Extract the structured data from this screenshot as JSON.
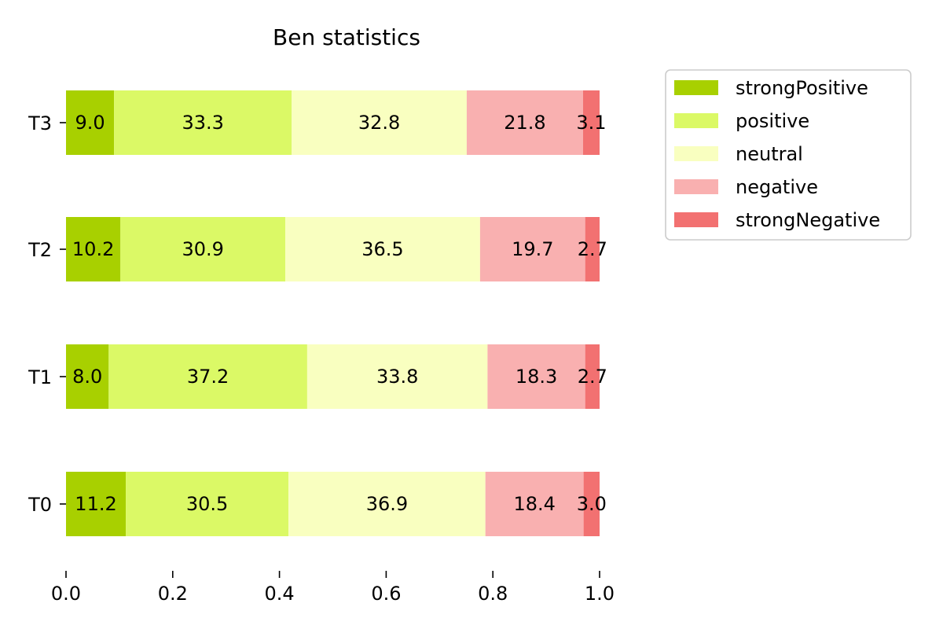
{
  "chart_data": {
    "type": "bar",
    "orientation": "horizontal",
    "stacked": true,
    "title": "Ben statistics",
    "xlabel": "",
    "ylabel": "",
    "xlim": [
      0,
      1
    ],
    "x_ticks": [
      "0.0",
      "0.2",
      "0.4",
      "0.6",
      "0.8",
      "1.0"
    ],
    "categories": [
      "T3",
      "T2",
      "T1",
      "T0"
    ],
    "series": [
      {
        "name": "strongPositive",
        "color": "#a8d000",
        "values": [
          0.09,
          0.102,
          0.08,
          0.112
        ],
        "labels": [
          "9.0",
          "10.2",
          "8.0",
          "11.2"
        ]
      },
      {
        "name": "positive",
        "color": "#dbf966",
        "values": [
          0.333,
          0.309,
          0.372,
          0.305
        ],
        "labels": [
          "33.3",
          "30.9",
          "37.2",
          "30.5"
        ]
      },
      {
        "name": "neutral",
        "color": "#f9ffc0",
        "values": [
          0.328,
          0.365,
          0.338,
          0.369
        ],
        "labels": [
          "32.8",
          "36.5",
          "33.8",
          "36.9"
        ]
      },
      {
        "name": "negative",
        "color": "#f9b0b0",
        "values": [
          0.218,
          0.197,
          0.183,
          0.184
        ],
        "labels": [
          "21.8",
          "19.7",
          "18.3",
          "18.4"
        ]
      },
      {
        "name": "strongNegative",
        "color": "#f27171",
        "values": [
          0.031,
          0.027,
          0.027,
          0.03
        ],
        "labels": [
          "3.1",
          "2.7",
          "2.7",
          "3.0"
        ]
      }
    ],
    "legend_position": "top-right",
    "grid": false
  }
}
